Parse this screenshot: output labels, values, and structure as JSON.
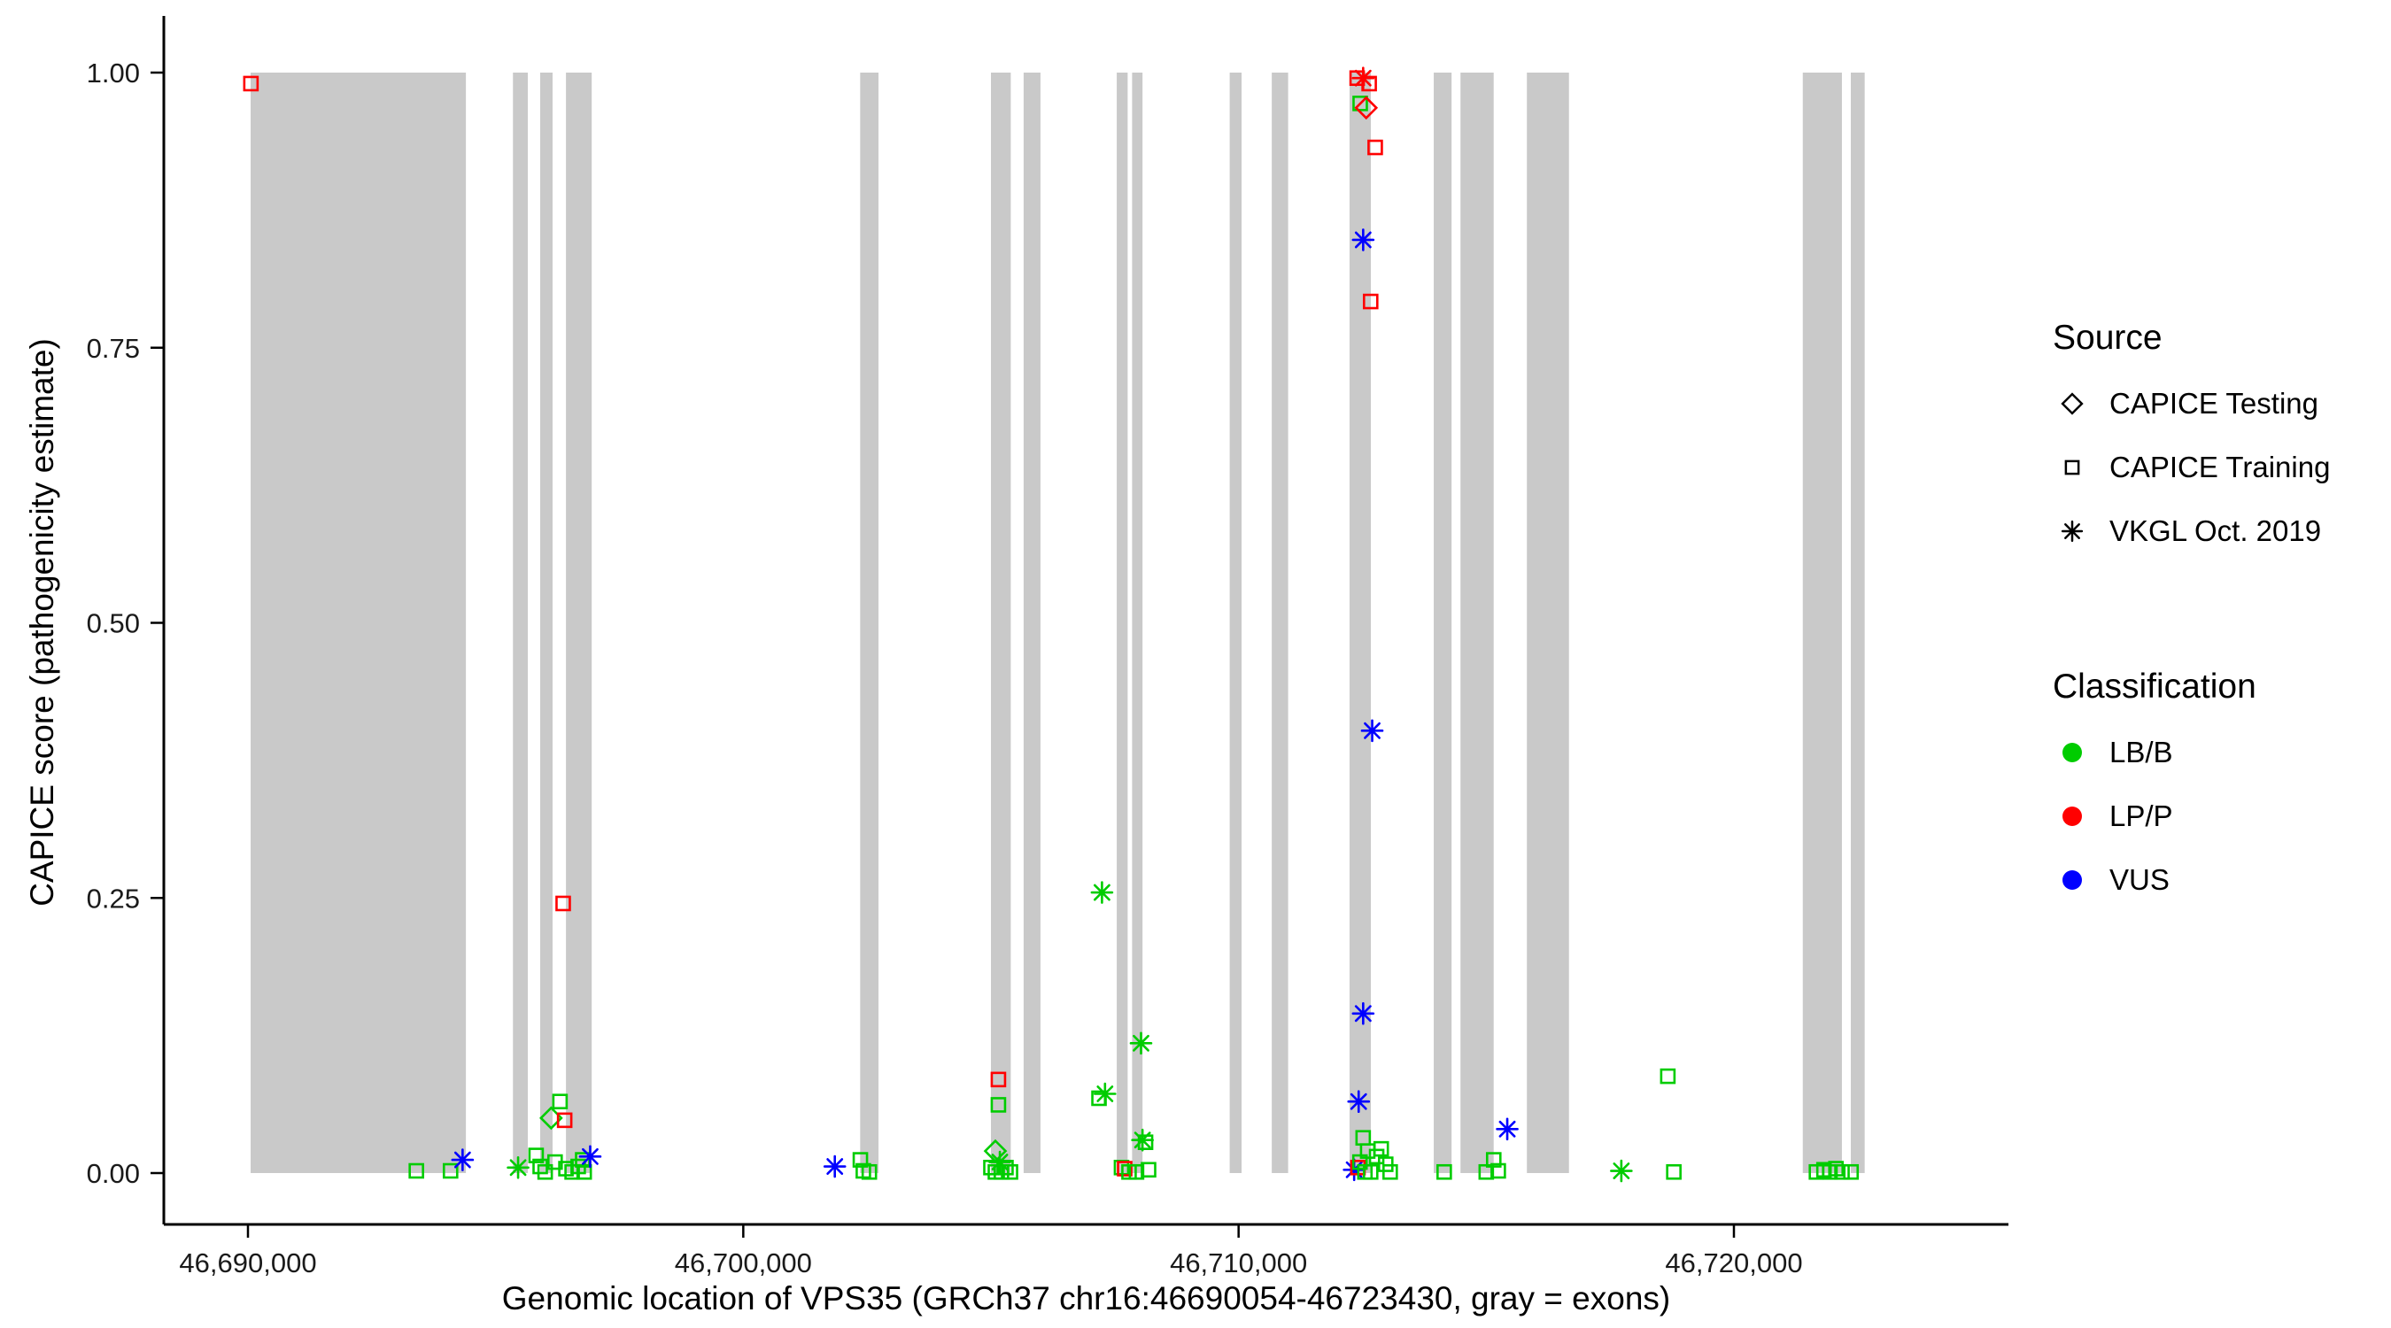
{
  "chart_data": {
    "type": "scatter",
    "title": "",
    "xlabel": "Genomic location of VPS35 (GRCh37 chr16:46690054-46723430, gray = exons)",
    "ylabel": "CAPICE score (pathogenicity estimate)",
    "xlim": [
      46688300,
      46725545
    ],
    "ylim": [
      0,
      1
    ],
    "grid": false,
    "legend_position": "right",
    "x_ticks": [
      {
        "value": 46690000,
        "label": "46,690,000"
      },
      {
        "value": 46700000,
        "label": "46,700,000"
      },
      {
        "value": 46710000,
        "label": "46,710,000"
      },
      {
        "value": 46720000,
        "label": "46,720,000"
      }
    ],
    "y_ticks": [
      {
        "value": 0,
        "label": "0.00"
      },
      {
        "value": 0.25,
        "label": "0.25"
      },
      {
        "value": 0.5,
        "label": "0.50"
      },
      {
        "value": 0.75,
        "label": "0.75"
      },
      {
        "value": 1,
        "label": "1.00"
      }
    ],
    "exon_color": "#C9C9C9",
    "sources": {
      "CAPICE Testing": "diamond",
      "CAPICE Training": "square",
      "VKGL Oct. 2019": "asterisk"
    },
    "classes": {
      "LB/B": "#00CC00",
      "LP/P": "#FF0000",
      "VUS": "#0000FF"
    },
    "exons": [
      [
        46690054,
        46694400
      ],
      [
        46695350,
        46695650
      ],
      [
        46695900,
        46696150
      ],
      [
        46696420,
        46696940
      ],
      [
        46702360,
        46702730
      ],
      [
        46705000,
        46705400
      ],
      [
        46705660,
        46706000
      ],
      [
        46707540,
        46707760
      ],
      [
        46707850,
        46708060
      ],
      [
        46709820,
        46710060
      ],
      [
        46710670,
        46711000
      ],
      [
        46712240,
        46712670
      ],
      [
        46713940,
        46714300
      ],
      [
        46714480,
        46715150
      ],
      [
        46715820,
        46716670
      ],
      [
        46721390,
        46722180
      ],
      [
        46722360,
        46722640
      ]
    ],
    "points": [
      {
        "x": 46690060,
        "y": 0.99,
        "s": "CAPICE Training",
        "c": "LP/P"
      },
      {
        "x": 46693400,
        "y": 0.002,
        "s": "CAPICE Training",
        "c": "LB/B"
      },
      {
        "x": 46694090,
        "y": 0.002,
        "s": "CAPICE Training",
        "c": "LB/B"
      },
      {
        "x": 46694333,
        "y": 0.012,
        "s": "VKGL Oct. 2019",
        "c": "VUS"
      },
      {
        "x": 46695454,
        "y": 0.005,
        "s": "VKGL Oct. 2019",
        "c": "LB/B"
      },
      {
        "x": 46695818,
        "y": 0.016,
        "s": "CAPICE Training",
        "c": "LB/B"
      },
      {
        "x": 46695900,
        "y": 0.006,
        "s": "CAPICE Training",
        "c": "LB/B"
      },
      {
        "x": 46696000,
        "y": 0.001,
        "s": "CAPICE Training",
        "c": "LB/B"
      },
      {
        "x": 46696121,
        "y": 0.05,
        "s": "CAPICE Testing",
        "c": "LB/B"
      },
      {
        "x": 46696200,
        "y": 0.01,
        "s": "CAPICE Training",
        "c": "LB/B"
      },
      {
        "x": 46696300,
        "y": 0.065,
        "s": "CAPICE Training",
        "c": "LB/B"
      },
      {
        "x": 46696364,
        "y": 0.245,
        "s": "CAPICE Training",
        "c": "LP/P"
      },
      {
        "x": 46696394,
        "y": 0.048,
        "s": "CAPICE Training",
        "c": "LP/P"
      },
      {
        "x": 46696420,
        "y": 0.004,
        "s": "CAPICE Training",
        "c": "LB/B"
      },
      {
        "x": 46696545,
        "y": 0.001,
        "s": "CAPICE Training",
        "c": "LB/B"
      },
      {
        "x": 46696667,
        "y": 0.006,
        "s": "CAPICE Training",
        "c": "LB/B"
      },
      {
        "x": 46696758,
        "y": 0.012,
        "s": "CAPICE Training",
        "c": "LB/B"
      },
      {
        "x": 46696788,
        "y": 0.001,
        "s": "CAPICE Training",
        "c": "LB/B"
      },
      {
        "x": 46696909,
        "y": 0.015,
        "s": "VKGL Oct. 2019",
        "c": "VUS"
      },
      {
        "x": 46701848,
        "y": 0.006,
        "s": "VKGL Oct. 2019",
        "c": "VUS"
      },
      {
        "x": 46702364,
        "y": 0.012,
        "s": "CAPICE Training",
        "c": "LB/B"
      },
      {
        "x": 46702424,
        "y": 0.002,
        "s": "CAPICE Training",
        "c": "LB/B"
      },
      {
        "x": 46702545,
        "y": 0.001,
        "s": "CAPICE Training",
        "c": "LB/B"
      },
      {
        "x": 46705000,
        "y": 0.005,
        "s": "CAPICE Training",
        "c": "LB/B"
      },
      {
        "x": 46705090,
        "y": 0.02,
        "s": "CAPICE Testing",
        "c": "LB/B"
      },
      {
        "x": 46705090,
        "y": 0.001,
        "s": "CAPICE Training",
        "c": "LB/B"
      },
      {
        "x": 46705151,
        "y": 0.085,
        "s": "CAPICE Training",
        "c": "LP/P"
      },
      {
        "x": 46705151,
        "y": 0.062,
        "s": "CAPICE Training",
        "c": "LB/B"
      },
      {
        "x": 46705180,
        "y": 0.01,
        "s": "VKGL Oct. 2019",
        "c": "LB/B"
      },
      {
        "x": 46705212,
        "y": 0.001,
        "s": "CAPICE Training",
        "c": "LB/B"
      },
      {
        "x": 46705303,
        "y": 0.005,
        "s": "CAPICE Training",
        "c": "LB/B"
      },
      {
        "x": 46705394,
        "y": 0.001,
        "s": "CAPICE Training",
        "c": "LB/B"
      },
      {
        "x": 46707182,
        "y": 0.068,
        "s": "CAPICE Training",
        "c": "LB/B"
      },
      {
        "x": 46707242,
        "y": 0.255,
        "s": "VKGL Oct. 2019",
        "c": "LB/B"
      },
      {
        "x": 46707303,
        "y": 0.072,
        "s": "VKGL Oct. 2019",
        "c": "LB/B"
      },
      {
        "x": 46707636,
        "y": 0.005,
        "s": "CAPICE Training",
        "c": "LB/B"
      },
      {
        "x": 46707700,
        "y": 0.004,
        "s": "CAPICE Training",
        "c": "LP/P"
      },
      {
        "x": 46707788,
        "y": 0.001,
        "s": "CAPICE Training",
        "c": "LB/B"
      },
      {
        "x": 46707939,
        "y": 0.001,
        "s": "CAPICE Training",
        "c": "LB/B"
      },
      {
        "x": 46708030,
        "y": 0.118,
        "s": "VKGL Oct. 2019",
        "c": "LB/B"
      },
      {
        "x": 46708060,
        "y": 0.03,
        "s": "VKGL Oct. 2019",
        "c": "LB/B"
      },
      {
        "x": 46708121,
        "y": 0.028,
        "s": "CAPICE Training",
        "c": "LB/B"
      },
      {
        "x": 46708182,
        "y": 0.003,
        "s": "CAPICE Training",
        "c": "LB/B"
      },
      {
        "x": 46712333,
        "y": 0.003,
        "s": "VKGL Oct. 2019",
        "c": "VUS"
      },
      {
        "x": 46712394,
        "y": 0.995,
        "s": "CAPICE Training",
        "c": "LP/P"
      },
      {
        "x": 46712410,
        "y": 0.005,
        "s": "CAPICE Training",
        "c": "LP/P"
      },
      {
        "x": 46712424,
        "y": 0.065,
        "s": "VKGL Oct. 2019",
        "c": "VUS"
      },
      {
        "x": 46712450,
        "y": 0.01,
        "s": "CAPICE Training",
        "c": "LB/B"
      },
      {
        "x": 46712455,
        "y": 0.972,
        "s": "CAPICE Training",
        "c": "LB/B"
      },
      {
        "x": 46712515,
        "y": 0.995,
        "s": "VKGL Oct. 2019",
        "c": "LP/P"
      },
      {
        "x": 46712515,
        "y": 0.848,
        "s": "VKGL Oct. 2019",
        "c": "VUS"
      },
      {
        "x": 46712515,
        "y": 0.145,
        "s": "VKGL Oct. 2019",
        "c": "VUS"
      },
      {
        "x": 46712515,
        "y": 0.032,
        "s": "CAPICE Training",
        "c": "LB/B"
      },
      {
        "x": 46712550,
        "y": 0.001,
        "s": "CAPICE Training",
        "c": "LB/B"
      },
      {
        "x": 46712576,
        "y": 0.968,
        "s": "CAPICE Testing",
        "c": "LP/P"
      },
      {
        "x": 46712606,
        "y": 0.02,
        "s": "CAPICE Training",
        "c": "LB/B"
      },
      {
        "x": 46712636,
        "y": 0.99,
        "s": "CAPICE Training",
        "c": "LP/P"
      },
      {
        "x": 46712666,
        "y": 0.792,
        "s": "CAPICE Training",
        "c": "LP/P"
      },
      {
        "x": 46712666,
        "y": 0.001,
        "s": "CAPICE Training",
        "c": "LB/B"
      },
      {
        "x": 46712697,
        "y": 0.402,
        "s": "VKGL Oct. 2019",
        "c": "VUS"
      },
      {
        "x": 46712758,
        "y": 0.932,
        "s": "CAPICE Training",
        "c": "LP/P"
      },
      {
        "x": 46712787,
        "y": 0.015,
        "s": "CAPICE Training",
        "c": "LB/B"
      },
      {
        "x": 46712879,
        "y": 0.022,
        "s": "CAPICE Training",
        "c": "LB/B"
      },
      {
        "x": 46712970,
        "y": 0.008,
        "s": "CAPICE Training",
        "c": "LB/B"
      },
      {
        "x": 46713060,
        "y": 0.001,
        "s": "CAPICE Training",
        "c": "LB/B"
      },
      {
        "x": 46714151,
        "y": 0.001,
        "s": "CAPICE Training",
        "c": "LB/B"
      },
      {
        "x": 46715000,
        "y": 0.001,
        "s": "CAPICE Training",
        "c": "LB/B"
      },
      {
        "x": 46715151,
        "y": 0.012,
        "s": "CAPICE Training",
        "c": "LB/B"
      },
      {
        "x": 46715242,
        "y": 0.002,
        "s": "CAPICE Training",
        "c": "LB/B"
      },
      {
        "x": 46715424,
        "y": 0.04,
        "s": "VKGL Oct. 2019",
        "c": "VUS"
      },
      {
        "x": 46717727,
        "y": 0.002,
        "s": "VKGL Oct. 2019",
        "c": "LB/B"
      },
      {
        "x": 46718666,
        "y": 0.088,
        "s": "CAPICE Training",
        "c": "LB/B"
      },
      {
        "x": 46718787,
        "y": 0.001,
        "s": "CAPICE Training",
        "c": "LB/B"
      },
      {
        "x": 46721666,
        "y": 0.001,
        "s": "CAPICE Training",
        "c": "LB/B"
      },
      {
        "x": 46721818,
        "y": 0.003,
        "s": "CAPICE Training",
        "c": "LB/B"
      },
      {
        "x": 46721939,
        "y": 0.001,
        "s": "CAPICE Training",
        "c": "LB/B"
      },
      {
        "x": 46722060,
        "y": 0.004,
        "s": "CAPICE Training",
        "c": "LB/B"
      },
      {
        "x": 46722182,
        "y": 0.001,
        "s": "CAPICE Training",
        "c": "LB/B"
      },
      {
        "x": 46722364,
        "y": 0.001,
        "s": "CAPICE Training",
        "c": "LB/B"
      }
    ]
  },
  "legend": {
    "source_title": "Source",
    "source_items": [
      {
        "label": "CAPICE Testing",
        "shape": "diamond"
      },
      {
        "label": "CAPICE Training",
        "shape": "square"
      },
      {
        "label": "VKGL Oct. 2019",
        "shape": "asterisk"
      }
    ],
    "class_title": "Classification",
    "class_items": [
      {
        "label": "LB/B",
        "color": "#00CC00"
      },
      {
        "label": "LP/P",
        "color": "#FF0000"
      },
      {
        "label": "VUS",
        "color": "#0000FF"
      }
    ]
  }
}
